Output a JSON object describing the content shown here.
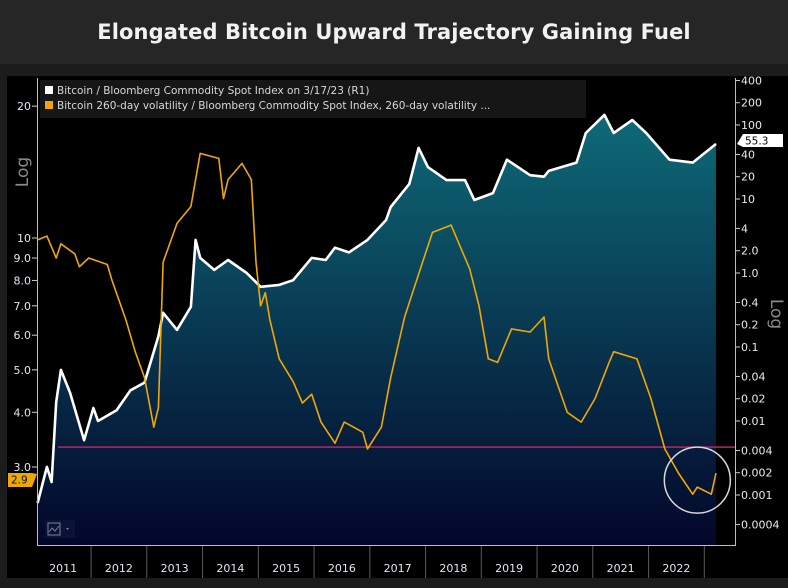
{
  "title": "Elongated Bitcoin Upward Trajectory Gaining Fuel",
  "chart_data": {
    "type": "line",
    "title": "Elongated Bitcoin Upward Trajectory Gaining Fuel",
    "x_ticks": [
      "2011",
      "2012",
      "2013",
      "2014",
      "2015",
      "2016",
      "2017",
      "2018",
      "2019",
      "2020",
      "2021",
      "2022"
    ],
    "x_range": [
      "2011-01",
      "2023-03"
    ],
    "left_axis": {
      "label": "Log",
      "scale": "log",
      "ticks": [
        "20",
        "10",
        "9.0",
        "8.0",
        "7.0",
        "6.0",
        "5.0",
        "4.0",
        "3.0"
      ],
      "tick_values": [
        20,
        10,
        9,
        8,
        7,
        6,
        5,
        4,
        3
      ]
    },
    "right_axis": {
      "label": "Log",
      "scale": "log",
      "ticks": [
        "400",
        "200",
        "100",
        "40",
        "20",
        "10",
        "4",
        "2.0",
        "1.0",
        "0.4",
        "0.2",
        "0.1",
        "0.04",
        "0.02",
        "0.01",
        "0.004",
        "0.002",
        "0.001",
        "0.0004"
      ],
      "tick_values": [
        400,
        200,
        100,
        40,
        20,
        10,
        4,
        2,
        1,
        0.4,
        0.2,
        0.1,
        0.04,
        0.02,
        0.01,
        0.004,
        0.002,
        0.001,
        0.0004
      ]
    },
    "grid": false,
    "legend_position": "top-left",
    "series": [
      {
        "name": "Bitcoin / Bloomberg Commodity Spot Index on 3/17/23 (R1)",
        "axis": "right",
        "color": "#ffffff",
        "fill": "area-gradient",
        "last_value_label": "55.3",
        "points": [
          [
            "2011-01",
            0.00078
          ],
          [
            "2011-03",
            0.0024
          ],
          [
            "2011-04",
            0.0015
          ],
          [
            "2011-05",
            0.018
          ],
          [
            "2011-06",
            0.049
          ],
          [
            "2011-08",
            0.024
          ],
          [
            "2011-11",
            0.0055
          ],
          [
            "2012-01",
            0.015
          ],
          [
            "2012-02",
            0.01
          ],
          [
            "2012-06",
            0.014
          ],
          [
            "2012-09",
            0.026
          ],
          [
            "2012-12",
            0.033
          ],
          [
            "2013-03",
            0.14
          ],
          [
            "2013-04",
            0.29
          ],
          [
            "2013-07",
            0.17
          ],
          [
            "2013-10",
            0.35
          ],
          [
            "2013-11",
            2.8
          ],
          [
            "2013-12",
            1.6
          ],
          [
            "2014-03",
            1.1
          ],
          [
            "2014-06",
            1.5
          ],
          [
            "2014-10",
            1.0
          ],
          [
            "2015-01",
            0.65
          ],
          [
            "2015-05",
            0.69
          ],
          [
            "2015-08",
            0.8
          ],
          [
            "2015-12",
            1.6
          ],
          [
            "2016-03",
            1.5
          ],
          [
            "2016-05",
            2.2
          ],
          [
            "2016-08",
            1.9
          ],
          [
            "2016-12",
            2.8
          ],
          [
            "2017-04",
            5.2
          ],
          [
            "2017-05",
            7.8
          ],
          [
            "2017-09",
            16
          ],
          [
            "2017-11",
            49
          ],
          [
            "2018-01",
            27
          ],
          [
            "2018-05",
            18
          ],
          [
            "2018-09",
            18
          ],
          [
            "2018-11",
            9.7
          ],
          [
            "2019-03",
            12
          ],
          [
            "2019-06",
            34
          ],
          [
            "2019-11",
            21
          ],
          [
            "2020-02",
            20
          ],
          [
            "2020-03",
            24
          ],
          [
            "2020-09",
            31
          ],
          [
            "2020-11",
            78
          ],
          [
            "2021-03",
            137
          ],
          [
            "2021-05",
            78
          ],
          [
            "2021-09",
            117
          ],
          [
            "2021-12",
            78
          ],
          [
            "2022-05",
            34
          ],
          [
            "2022-10",
            31
          ],
          [
            "2023-03",
            55.3
          ]
        ]
      },
      {
        "name": "Bitcoin 260-day volatility / Bloomberg Commodity Spot Index, 260-day volatility ...",
        "axis": "left",
        "color": "#f0a800",
        "last_value_label": "2.9",
        "points": [
          [
            "2011-01",
            9.9
          ],
          [
            "2011-03",
            10.1
          ],
          [
            "2011-05",
            9.0
          ],
          [
            "2011-06",
            9.7
          ],
          [
            "2011-09",
            9.2
          ],
          [
            "2011-10",
            8.6
          ],
          [
            "2011-12",
            9.0
          ],
          [
            "2012-04",
            8.7
          ],
          [
            "2012-05",
            8.0
          ],
          [
            "2012-08",
            6.5
          ],
          [
            "2012-10",
            5.5
          ],
          [
            "2012-12",
            4.8
          ],
          [
            "2013-02",
            3.7
          ],
          [
            "2013-03",
            4.1
          ],
          [
            "2013-04",
            8.8
          ],
          [
            "2013-07",
            10.8
          ],
          [
            "2013-10",
            11.8
          ],
          [
            "2013-12",
            15.6
          ],
          [
            "2014-04",
            15.2
          ],
          [
            "2014-05",
            12.3
          ],
          [
            "2014-06",
            13.6
          ],
          [
            "2014-09",
            14.8
          ],
          [
            "2014-11",
            13.6
          ],
          [
            "2014-12",
            8.8
          ],
          [
            "2015-01",
            7.0
          ],
          [
            "2015-02",
            7.5
          ],
          [
            "2015-03",
            6.5
          ],
          [
            "2015-05",
            5.3
          ],
          [
            "2015-08",
            4.7
          ],
          [
            "2015-10",
            4.2
          ],
          [
            "2015-12",
            4.4
          ],
          [
            "2016-02",
            3.8
          ],
          [
            "2016-05",
            3.4
          ],
          [
            "2016-07",
            3.8
          ],
          [
            "2016-09",
            3.7
          ],
          [
            "2016-11",
            3.6
          ],
          [
            "2016-12",
            3.3
          ],
          [
            "2017-03",
            3.7
          ],
          [
            "2017-05",
            4.8
          ],
          [
            "2017-08",
            6.6
          ],
          [
            "2017-12",
            8.9
          ],
          [
            "2018-02",
            10.3
          ],
          [
            "2018-06",
            10.7
          ],
          [
            "2018-10",
            8.5
          ],
          [
            "2018-12",
            7.0
          ],
          [
            "2019-02",
            5.3
          ],
          [
            "2019-04",
            5.2
          ],
          [
            "2019-07",
            6.2
          ],
          [
            "2019-11",
            6.1
          ],
          [
            "2020-02",
            6.6
          ],
          [
            "2020-03",
            5.3
          ],
          [
            "2020-05",
            4.6
          ],
          [
            "2020-07",
            4.0
          ],
          [
            "2020-10",
            3.8
          ],
          [
            "2021-01",
            4.3
          ],
          [
            "2021-04",
            5.2
          ],
          [
            "2021-05",
            5.5
          ],
          [
            "2021-10",
            5.3
          ],
          [
            "2022-01",
            4.3
          ],
          [
            "2022-04",
            3.3
          ],
          [
            "2022-07",
            2.9
          ],
          [
            "2022-10",
            2.6
          ],
          [
            "2022-11",
            2.7
          ],
          [
            "2023-02",
            2.6
          ],
          [
            "2023-03",
            2.9
          ]
        ]
      }
    ],
    "reference_line": {
      "axis": "left",
      "value": 3.33,
      "color": "#c0206a"
    },
    "highlight_circle": {
      "x": "2022-11",
      "axis": "left",
      "y": 2.8,
      "color": "#d8d8d8"
    }
  },
  "colors": {
    "area_top": "#0e6a78",
    "area_bottom": "#03062a",
    "white_label_bg": "#ffffff",
    "orange_label_bg": "#f0a800"
  },
  "chart_type_button_icon": "line-chart-icon"
}
